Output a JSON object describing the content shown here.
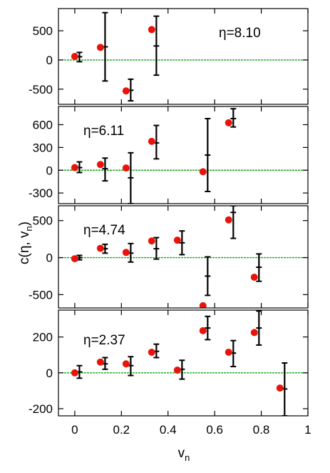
{
  "chart_data": {
    "type": "scatter",
    "shared_x": {
      "ticks": [
        "0",
        "0.2",
        "0.4",
        "0.6",
        "0.8",
        "1"
      ],
      "tick_values": [
        0,
        0.2,
        0.4,
        0.6,
        0.8,
        1
      ],
      "xlim": [
        -0.07,
        1.0
      ]
    },
    "xlabel": {
      "base": "v",
      "sub": "n"
    },
    "ylabel": {
      "base": "c(η, v",
      "sub": "n",
      "close": ")"
    },
    "colors": {
      "points": "#e8140c",
      "errorbars": "#000000",
      "zero_line": "#1aa31a",
      "frame": "#000000"
    },
    "panels": [
      {
        "label": "η=8.10",
        "ylim": [
          -760,
          880
        ],
        "yticks": [
          -500,
          0,
          500
        ],
        "ytick_labels": [
          "-500",
          "0",
          "500"
        ],
        "points": [
          {
            "x": 0.0,
            "y": 60
          },
          {
            "x": 0.11,
            "y": 215
          },
          {
            "x": 0.22,
            "y": -530
          },
          {
            "x": 0.33,
            "y": 520
          }
        ],
        "errorbars": [
          {
            "x": 0.02,
            "y": 55,
            "low": -30,
            "high": 130
          },
          {
            "x": 0.13,
            "y": 225,
            "low": -360,
            "high": 810
          },
          {
            "x": 0.24,
            "y": -520,
            "low": -700,
            "high": -330
          },
          {
            "x": 0.35,
            "y": 240,
            "low": -260,
            "high": 750
          }
        ]
      },
      {
        "label": "η=6.11",
        "ylim": [
          -440,
          840
        ],
        "yticks": [
          -300,
          0,
          300,
          600
        ],
        "ytick_labels": [
          "-300",
          "0",
          "300",
          "600"
        ],
        "points": [
          {
            "x": 0.0,
            "y": 35
          },
          {
            "x": 0.11,
            "y": 75
          },
          {
            "x": 0.22,
            "y": 30
          },
          {
            "x": 0.33,
            "y": 380
          },
          {
            "x": 0.55,
            "y": -20
          },
          {
            "x": 0.66,
            "y": 625
          }
        ],
        "errorbars": [
          {
            "x": 0.02,
            "y": 35,
            "low": -30,
            "high": 110
          },
          {
            "x": 0.13,
            "y": 20,
            "low": -140,
            "high": 160
          },
          {
            "x": 0.24,
            "y": -100,
            "low": -440,
            "high": 230
          },
          {
            "x": 0.35,
            "y": 360,
            "low": 150,
            "high": 590
          },
          {
            "x": 0.57,
            "y": 200,
            "low": -280,
            "high": 680
          },
          {
            "x": 0.68,
            "y": 680,
            "low": 570,
            "high": 810
          }
        ]
      },
      {
        "label": "η=4.74",
        "ylim": [
          -680,
          700
        ],
        "yticks": [
          -500,
          0,
          500
        ],
        "ytick_labels": [
          "-500",
          "0",
          "500"
        ],
        "points": [
          {
            "x": 0.0,
            "y": -15
          },
          {
            "x": 0.11,
            "y": 125
          },
          {
            "x": 0.22,
            "y": 70
          },
          {
            "x": 0.33,
            "y": 225
          },
          {
            "x": 0.44,
            "y": 235
          },
          {
            "x": 0.55,
            "y": -650
          },
          {
            "x": 0.66,
            "y": 510
          },
          {
            "x": 0.77,
            "y": -265
          }
        ],
        "errorbars": [
          {
            "x": 0.02,
            "y": 0,
            "low": -30,
            "high": 30
          },
          {
            "x": 0.13,
            "y": 120,
            "low": 60,
            "high": 180
          },
          {
            "x": 0.24,
            "y": 60,
            "low": -60,
            "high": 190
          },
          {
            "x": 0.35,
            "y": 120,
            "low": -20,
            "high": 270
          },
          {
            "x": 0.46,
            "y": 200,
            "low": 40,
            "high": 360
          },
          {
            "x": 0.57,
            "y": -250,
            "low": -510,
            "high": 10
          },
          {
            "x": 0.68,
            "y": 610,
            "low": 260,
            "high": 700
          },
          {
            "x": 0.79,
            "y": -130,
            "low": -320,
            "high": 50
          }
        ]
      },
      {
        "label": "η=2.37",
        "ylim": [
          -240,
          350
        ],
        "yticks": [
          -200,
          0,
          200
        ],
        "ytick_labels": [
          "-200",
          "0",
          "200"
        ],
        "points": [
          {
            "x": 0.0,
            "y": 0
          },
          {
            "x": 0.11,
            "y": 60
          },
          {
            "x": 0.22,
            "y": 50
          },
          {
            "x": 0.33,
            "y": 115
          },
          {
            "x": 0.44,
            "y": 15
          },
          {
            "x": 0.55,
            "y": 235
          },
          {
            "x": 0.66,
            "y": 115
          },
          {
            "x": 0.77,
            "y": 225
          },
          {
            "x": 0.88,
            "y": -85
          }
        ],
        "errorbars": [
          {
            "x": 0.02,
            "y": 5,
            "low": -30,
            "high": 40
          },
          {
            "x": 0.13,
            "y": 50,
            "low": 20,
            "high": 85
          },
          {
            "x": 0.24,
            "y": 40,
            "low": -15,
            "high": 90
          },
          {
            "x": 0.35,
            "y": 120,
            "low": 85,
            "high": 160
          },
          {
            "x": 0.46,
            "y": 20,
            "low": -35,
            "high": 70
          },
          {
            "x": 0.57,
            "y": 250,
            "low": 185,
            "high": 315
          },
          {
            "x": 0.68,
            "y": 110,
            "low": 35,
            "high": 180
          },
          {
            "x": 0.79,
            "y": 250,
            "low": 155,
            "high": 345
          },
          {
            "x": 0.9,
            "y": -90,
            "low": -240,
            "high": 55
          }
        ]
      }
    ]
  }
}
